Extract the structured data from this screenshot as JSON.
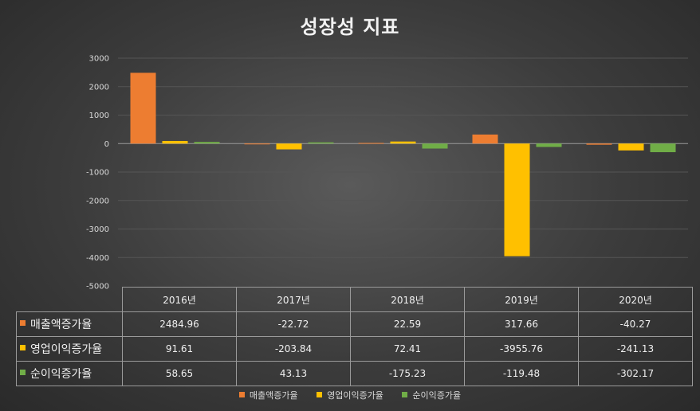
{
  "chart_data": {
    "type": "bar",
    "title": "성장성 지표",
    "categories": [
      "2016년",
      "2017년",
      "2018년",
      "2019년",
      "2020년"
    ],
    "series": [
      {
        "name": "매출액증가율",
        "values": [
          2484.96,
          -22.72,
          22.59,
          317.66,
          -40.27
        ],
        "color": "#ed7d31"
      },
      {
        "name": "영업이익증가율",
        "values": [
          91.61,
          -203.84,
          72.41,
          -3955.76,
          -241.13
        ],
        "color": "#ffc000"
      },
      {
        "name": "순이익증가율",
        "values": [
          58.65,
          43.13,
          -175.23,
          -119.48,
          -302.17
        ],
        "color": "#70ad47"
      }
    ],
    "table_values": [
      [
        "2484.96",
        "-22.72",
        "22.59",
        "317.66",
        "-40.27"
      ],
      [
        "91.61",
        "-203.84",
        "72.41",
        "-3955.76",
        "-241.13"
      ],
      [
        "58.65",
        "43.13",
        "-175.23",
        "-119.48",
        "-302.17"
      ]
    ],
    "yticks": [
      "3000",
      "2000",
      "1000",
      "0",
      "-1000",
      "-2000",
      "-3000",
      "-4000",
      "-5000"
    ],
    "ylim": [
      -5000,
      3000
    ],
    "grid": true,
    "legend_position": "bottom",
    "data_table": true
  }
}
